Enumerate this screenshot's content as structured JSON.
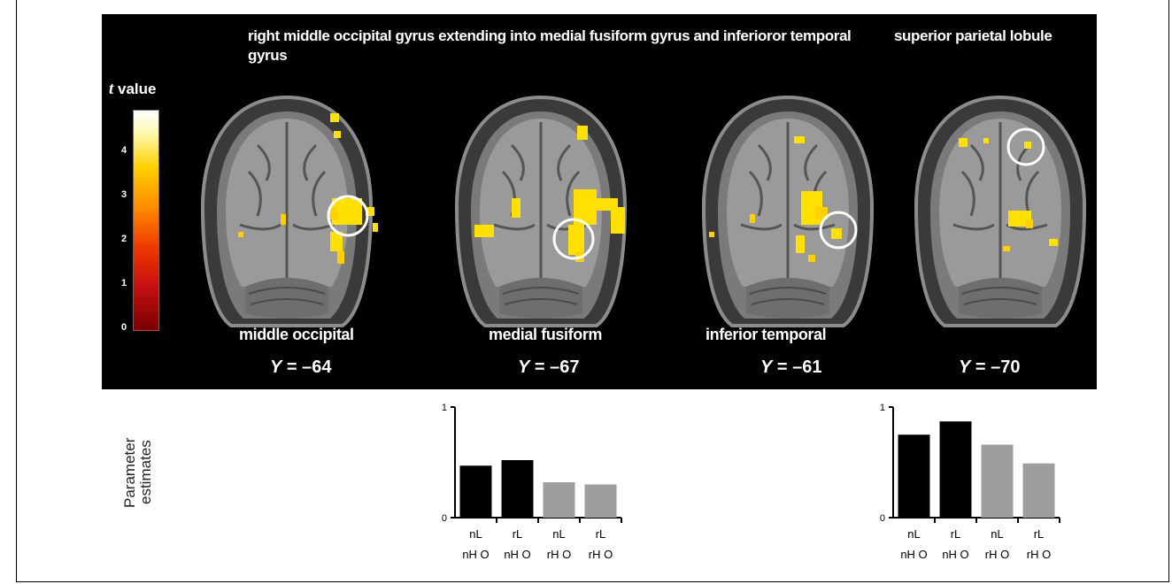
{
  "colors": {
    "active": "#ffe000",
    "bar_black": "#000000",
    "bar_gray": "#9e9e9e"
  },
  "figure": {
    "title_left": "right middle occipital gyrus extending into medial fusiform gyrus and inferioror temporal gyrus",
    "title_right": "superior parietal lobule",
    "colorbar_label_italic": "t",
    "colorbar_label": "value",
    "colorbar_ticks": [
      "4",
      "3",
      "2",
      "1",
      "0"
    ],
    "slices": [
      {
        "region": "middle occipital",
        "coord_axis": "Y",
        "coord_value": " = –64"
      },
      {
        "region": "medial fusiform",
        "coord_axis": "Y",
        "coord_value": " = –67"
      },
      {
        "region": "inferior temporal",
        "coord_axis": "Y",
        "coord_value": " = –61"
      },
      {
        "region": "",
        "coord_axis": "Y",
        "coord_value": " = –70"
      }
    ]
  },
  "ylabel_lines": [
    "Parameter",
    "estimates"
  ],
  "chart_data": [
    {
      "type": "bar",
      "categories": [
        "nL nH O",
        "rL nH O",
        "nL rH O",
        "rL rH O"
      ],
      "category_lines": [
        [
          "nL",
          "nH O"
        ],
        [
          "rL",
          "nH O"
        ],
        [
          "nL",
          "rH O"
        ],
        [
          "rL",
          "rH O"
        ]
      ],
      "values": [
        0.47,
        0.52,
        0.32,
        0.3
      ],
      "bar_colors": [
        "#000000",
        "#000000",
        "#9e9e9e",
        "#9e9e9e"
      ],
      "ylim": [
        0,
        1
      ],
      "yticks": [
        "0",
        "1"
      ],
      "ylabel": "Parameter estimates"
    },
    {
      "type": "bar",
      "categories": [
        "nL nH O",
        "rL nH O",
        "nL rH O",
        "rL rH O"
      ],
      "category_lines": [
        [
          "nL",
          "nH O"
        ],
        [
          "rL",
          "nH O"
        ],
        [
          "nL",
          "rH O"
        ],
        [
          "rL",
          "rH O"
        ]
      ],
      "values": [
        0.75,
        0.87,
        0.66,
        0.49
      ],
      "bar_colors": [
        "#000000",
        "#000000",
        "#9e9e9e",
        "#9e9e9e"
      ],
      "ylim": [
        0,
        1
      ],
      "yticks": [
        "0",
        "1"
      ],
      "ylabel": "Parameter estimates"
    }
  ]
}
